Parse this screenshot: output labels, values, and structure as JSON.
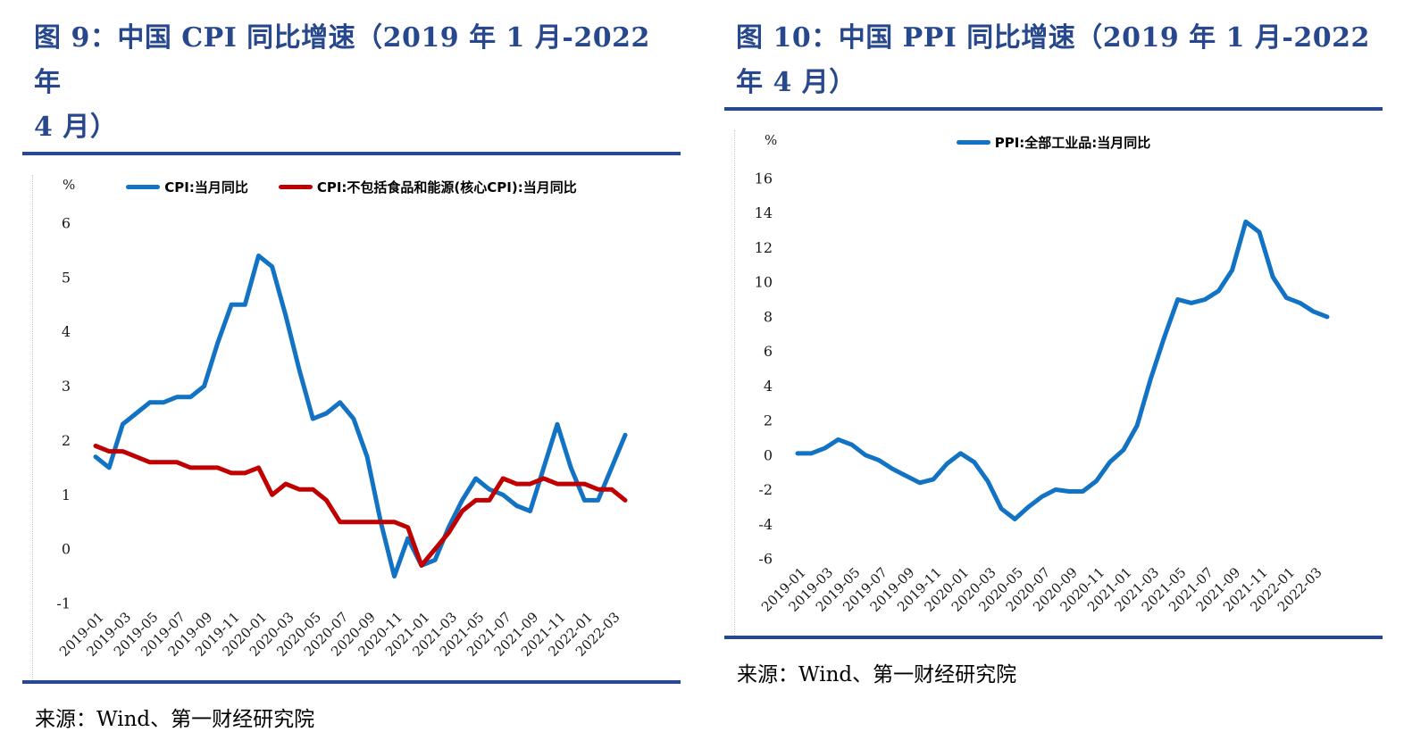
{
  "colors": {
    "navy": "#27488C",
    "chart_blue": "#1272C4",
    "chart_red": "#C00000",
    "axis_text": "#1a1a1a"
  },
  "panels": [
    {
      "id": "figure-9",
      "title": "图 9：中国 CPI 同比增速（2019 年 1 月-2022 年\n4 月）",
      "unit_label": "%",
      "legend": [
        {
          "label": "CPI:当月同比",
          "color": "#1272C4"
        },
        {
          "label": "CPI:不包括食品和能源(核心CPI):当月同比",
          "color": "#C00000"
        }
      ],
      "source": "来源：Wind、第一财经研究院"
    },
    {
      "id": "figure-10",
      "title": "图 10：中国 PPI 同比增速（2019 年 1 月-2022\n年 4 月）",
      "unit_label": "%",
      "legend": [
        {
          "label": "PPI:全部工业品:当月同比",
          "color": "#1272C4"
        }
      ],
      "source": "来源：Wind、第一财经研究院"
    }
  ],
  "chart_data": [
    {
      "type": "line",
      "title": "图 9：中国 CPI 同比增速（2019 年 1 月-2022 年 4 月）",
      "xlabel": "",
      "ylabel": "%",
      "ylim": [
        -1,
        6
      ],
      "ytick_step": 1,
      "grid": false,
      "legend_position": "top",
      "x_tick_every": 2,
      "x": [
        "2019-01",
        "2019-02",
        "2019-03",
        "2019-04",
        "2019-05",
        "2019-06",
        "2019-07",
        "2019-08",
        "2019-09",
        "2019-10",
        "2019-11",
        "2019-12",
        "2020-01",
        "2020-02",
        "2020-03",
        "2020-04",
        "2020-05",
        "2020-06",
        "2020-07",
        "2020-08",
        "2020-09",
        "2020-10",
        "2020-11",
        "2020-12",
        "2021-01",
        "2021-02",
        "2021-03",
        "2021-04",
        "2021-05",
        "2021-06",
        "2021-07",
        "2021-08",
        "2021-09",
        "2021-10",
        "2021-11",
        "2021-12",
        "2022-01",
        "2022-02",
        "2022-03",
        "2022-04"
      ],
      "series": [
        {
          "name": "CPI:当月同比",
          "color": "#1272C4",
          "values": [
            1.7,
            1.5,
            2.3,
            2.5,
            2.7,
            2.7,
            2.8,
            2.8,
            3.0,
            3.8,
            4.5,
            4.5,
            5.4,
            5.2,
            4.3,
            3.3,
            2.4,
            2.5,
            2.7,
            2.4,
            1.7,
            0.5,
            -0.5,
            0.2,
            -0.3,
            -0.2,
            0.4,
            0.9,
            1.3,
            1.1,
            1.0,
            0.8,
            0.7,
            1.5,
            2.3,
            1.5,
            0.9,
            0.9,
            1.5,
            2.1
          ]
        },
        {
          "name": "CPI:不包括食品和能源(核心CPI):当月同比",
          "color": "#C00000",
          "values": [
            1.9,
            1.8,
            1.8,
            1.7,
            1.6,
            1.6,
            1.6,
            1.5,
            1.5,
            1.5,
            1.4,
            1.4,
            1.5,
            1.0,
            1.2,
            1.1,
            1.1,
            0.9,
            0.5,
            0.5,
            0.5,
            0.5,
            0.5,
            0.4,
            -0.3,
            0.0,
            0.3,
            0.7,
            0.9,
            0.9,
            1.3,
            1.2,
            1.2,
            1.3,
            1.2,
            1.2,
            1.2,
            1.1,
            1.1,
            0.9
          ]
        }
      ]
    },
    {
      "type": "line",
      "title": "图 10：中国 PPI 同比增速（2019 年 1 月-2022 年 4 月）",
      "xlabel": "",
      "ylabel": "%",
      "ylim": [
        -6,
        16
      ],
      "ytick_step": 2,
      "grid": false,
      "legend_position": "top",
      "x_tick_every": 2,
      "x": [
        "2019-01",
        "2019-02",
        "2019-03",
        "2019-04",
        "2019-05",
        "2019-06",
        "2019-07",
        "2019-08",
        "2019-09",
        "2019-10",
        "2019-11",
        "2019-12",
        "2020-01",
        "2020-02",
        "2020-03",
        "2020-04",
        "2020-05",
        "2020-06",
        "2020-07",
        "2020-08",
        "2020-09",
        "2020-10",
        "2020-11",
        "2020-12",
        "2021-01",
        "2021-02",
        "2021-03",
        "2021-04",
        "2021-05",
        "2021-06",
        "2021-07",
        "2021-08",
        "2021-09",
        "2021-10",
        "2021-11",
        "2021-12",
        "2022-01",
        "2022-02",
        "2022-03",
        "2022-04"
      ],
      "series": [
        {
          "name": "PPI:全部工业品:当月同比",
          "color": "#1272C4",
          "values": [
            0.1,
            0.1,
            0.4,
            0.9,
            0.6,
            0.0,
            -0.3,
            -0.8,
            -1.2,
            -1.6,
            -1.4,
            -0.5,
            0.1,
            -0.4,
            -1.5,
            -3.1,
            -3.7,
            -3.0,
            -2.4,
            -2.0,
            -2.1,
            -2.1,
            -1.5,
            -0.4,
            0.3,
            1.7,
            4.4,
            6.8,
            9.0,
            8.8,
            9.0,
            9.5,
            10.7,
            13.5,
            12.9,
            10.3,
            9.1,
            8.8,
            8.3,
            8.0
          ]
        }
      ]
    }
  ]
}
